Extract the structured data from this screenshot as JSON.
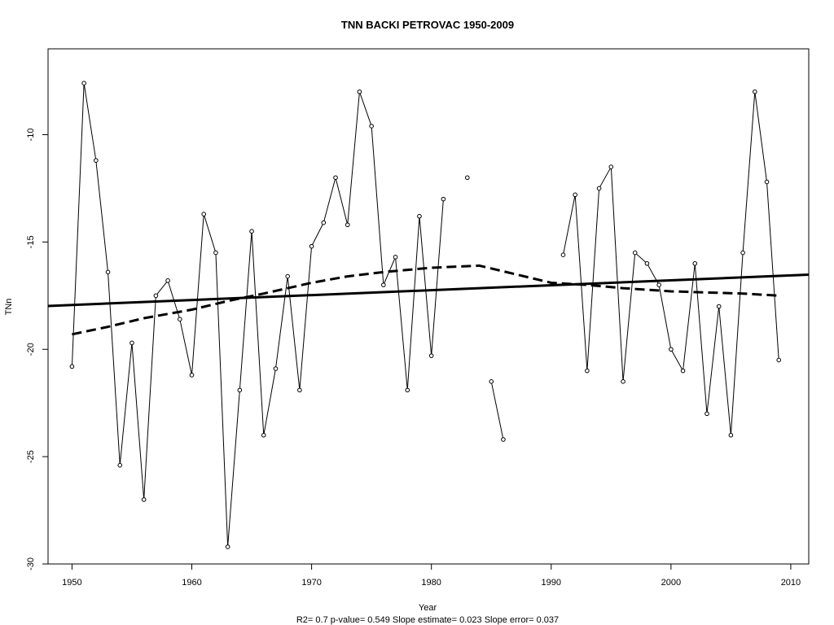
{
  "chart_data": {
    "type": "line",
    "title": "TNN   BACKI PETROVAC 1950-2009",
    "xlabel": "Year",
    "ylabel": "TNn",
    "stats": "R2= 0.7  p-value= 0.549  Slope estimate= 0.023  Slope error= 0.037",
    "xlim": [
      1948,
      2011.5
    ],
    "ylim": [
      -30,
      -6
    ],
    "xticks": [
      1950,
      1960,
      1970,
      1980,
      1990,
      2000,
      2010
    ],
    "yticks": [
      -30,
      -25,
      -20,
      -15,
      -10
    ],
    "grid": false,
    "legend": "none",
    "series": [
      {
        "x": [
          1950,
          1951,
          1952,
          1953,
          1954,
          1955,
          1956,
          1957,
          1958,
          1959,
          1960,
          1961,
          1962,
          1963,
          1964,
          1965,
          1966,
          1967,
          1968,
          1969,
          1970,
          1971,
          1972,
          1973,
          1974,
          1975,
          1976,
          1977,
          1978,
          1979,
          1980,
          1981,
          1982,
          1983,
          1984,
          1985,
          1986,
          1987,
          1988,
          1989,
          1990,
          1991,
          1992,
          1993,
          1994,
          1995,
          1996,
          1997,
          1998,
          1999,
          2000,
          2001,
          2002,
          2003,
          2004,
          2005,
          2006,
          2007,
          2008,
          2009
        ],
        "y": [
          -20.8,
          -7.6,
          -11.2,
          -16.4,
          -25.4,
          -19.7,
          -27.0,
          -17.5,
          -16.8,
          -18.6,
          -21.2,
          -13.7,
          -15.5,
          -29.2,
          -21.9,
          -14.5,
          -24.0,
          -20.9,
          -16.6,
          -21.9,
          -15.2,
          -14.1,
          -12.0,
          -14.2,
          -8.0,
          -9.6,
          -17.0,
          -15.7,
          -21.9,
          -13.8,
          -20.3,
          -13.0,
          null,
          -12.0,
          null,
          -21.5,
          -24.2,
          null,
          null,
          null,
          null,
          -15.6,
          -12.8,
          -21.0,
          -12.5,
          -11.5,
          -21.5,
          -15.5,
          -16.0,
          -17.0,
          -20.0,
          -21.0,
          -16.0,
          -23.0,
          -18.0,
          -24.0,
          -15.5,
          -8.0,
          -12.2,
          -20.5
        ]
      }
    ],
    "trend_line": {
      "x": [
        1948,
        2011.5
      ],
      "y": [
        -17.98,
        -16.52
      ]
    },
    "smooth_curve": {
      "x": [
        1950,
        1953,
        1956,
        1960,
        1963,
        1966,
        1970,
        1973,
        1976,
        1980,
        1984,
        1987,
        1990,
        1993,
        1996,
        2000,
        2003,
        2006,
        2009
      ],
      "y": [
        -19.3,
        -18.95,
        -18.55,
        -18.15,
        -17.75,
        -17.4,
        -16.9,
        -16.6,
        -16.4,
        -16.2,
        -16.1,
        -16.5,
        -16.9,
        -17.0,
        -17.15,
        -17.3,
        -17.35,
        -17.4,
        -17.5
      ]
    }
  }
}
